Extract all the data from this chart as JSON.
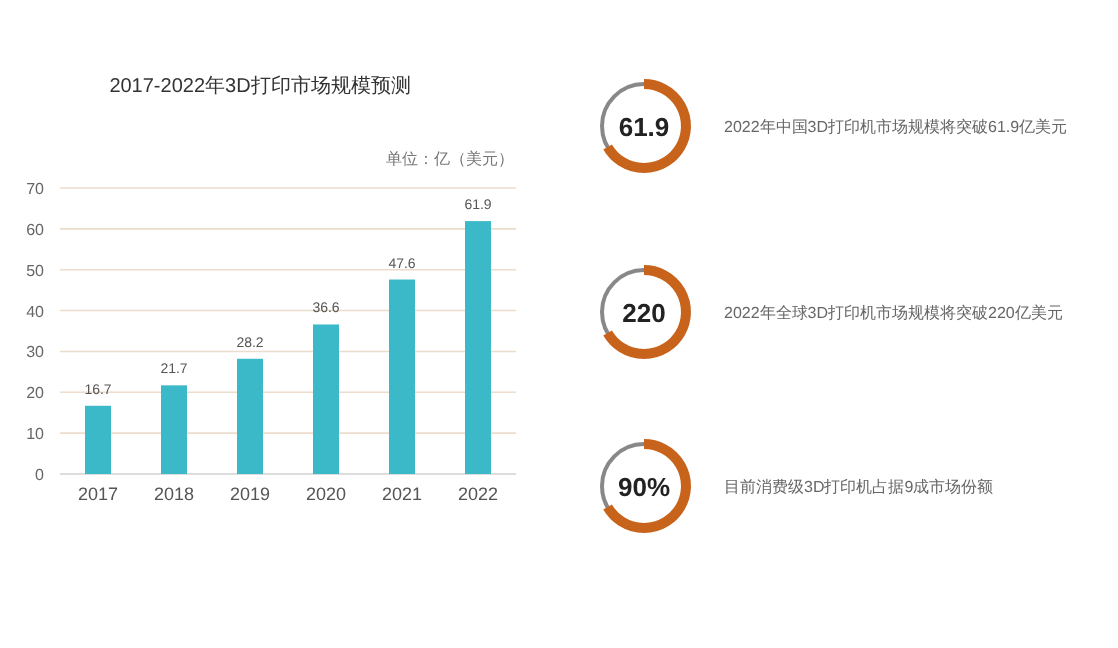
{
  "chart_data": [
    {
      "type": "bar",
      "title": "2017-2022年3D打印市场规模预测",
      "ylabel": "单位：亿（美元）",
      "categories": [
        "2017",
        "2018",
        "2019",
        "2020",
        "2021",
        "2022"
      ],
      "values": [
        16.7,
        21.7,
        28.2,
        36.6,
        47.6,
        61.9
      ],
      "color": "#3cb9c9",
      "ylim": [
        0,
        70
      ],
      "yticks": [
        0,
        10,
        20,
        30,
        40,
        50,
        60,
        70
      ],
      "grid": "y",
      "data_labels": true
    },
    {
      "type": "other",
      "annotations": [
        "61.9",
        "2022年中国3D打印机市场规模将突破61.9亿美元",
        "220",
        "2022年全球3D打印机市场规模将突破220亿美元",
        "90%",
        "目前消费级3D打印机占据9成市场份额"
      ]
    }
  ]
}
